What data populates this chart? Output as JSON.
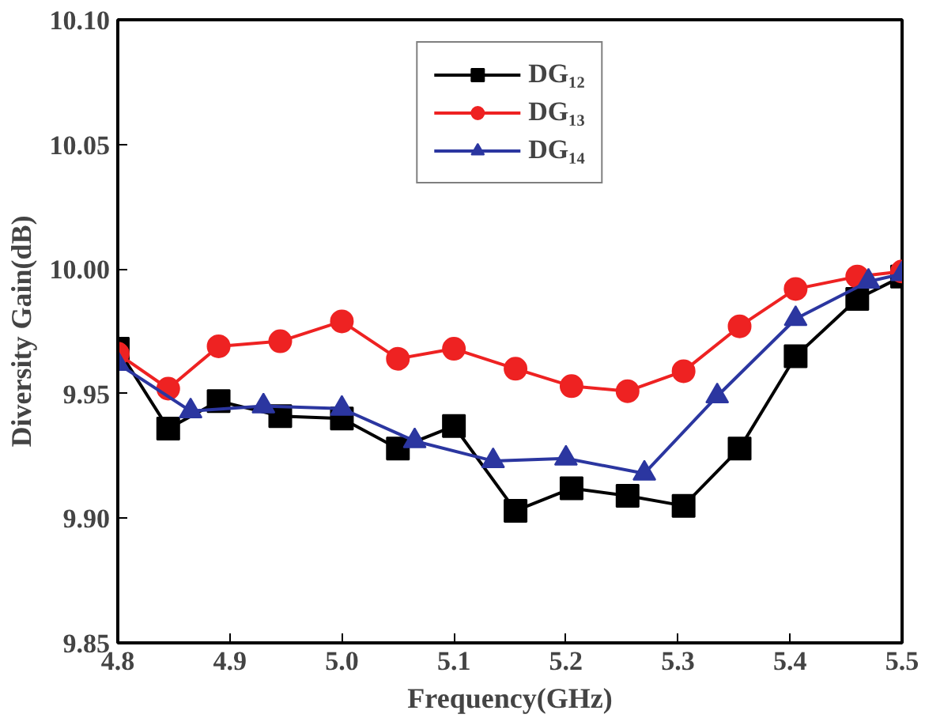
{
  "chart_data": {
    "type": "line",
    "xlabel": "Frequency(GHz)",
    "ylabel": "Diversity Gain(dB)",
    "xlim": [
      4.8,
      5.5
    ],
    "xticks": [
      {
        "value": 4.8,
        "label": "4.8"
      },
      {
        "value": 4.9,
        "label": "4.9"
      },
      {
        "value": 5.0,
        "label": "5.0"
      },
      {
        "value": 5.1,
        "label": "5.1"
      },
      {
        "value": 5.2,
        "label": "5.2"
      },
      {
        "value": 5.3,
        "label": "5.3"
      },
      {
        "value": 5.4,
        "label": "5.4"
      },
      {
        "value": 5.5,
        "label": "5.5"
      }
    ],
    "ylim": [
      9.85,
      10.1
    ],
    "yticks": [
      {
        "value": 9.85,
        "label": "9.85"
      },
      {
        "value": 9.9,
        "label": "9.90"
      },
      {
        "value": 9.95,
        "label": "9.95"
      },
      {
        "value": 10.0,
        "label": "10.00"
      },
      {
        "value": 10.05,
        "label": "10.05"
      },
      {
        "value": 10.1,
        "label": "10.10"
      }
    ],
    "grid": false,
    "legend": "top",
    "line_style": "solid",
    "series": [
      {
        "name": "DG₁₂",
        "color": "#000000",
        "marker": "square",
        "x": [
          4.8,
          4.845,
          4.89,
          4.945,
          5.0,
          5.05,
          5.1,
          5.155,
          5.205,
          5.255,
          5.305,
          5.355,
          5.405,
          5.46,
          5.5
        ],
        "values": [
          9.968,
          9.936,
          9.947,
          9.941,
          9.94,
          9.928,
          9.937,
          9.903,
          9.912,
          9.909,
          9.905,
          9.928,
          9.965,
          9.988,
          9.997
        ]
      },
      {
        "name": "DG₁₃",
        "color": "#ee2222",
        "marker": "circle",
        "x": [
          4.8,
          4.845,
          4.89,
          4.945,
          5.0,
          5.05,
          5.1,
          5.155,
          5.205,
          5.255,
          5.305,
          5.355,
          5.405,
          5.46,
          5.5
        ],
        "values": [
          9.966,
          9.952,
          9.969,
          9.971,
          9.979,
          9.964,
          9.968,
          9.96,
          9.953,
          9.951,
          9.959,
          9.977,
          9.992,
          9.997,
          9.999
        ]
      },
      {
        "name": "DG₁₄",
        "color": "#2b36a0",
        "marker": "triangle",
        "x": [
          4.8,
          4.865,
          4.93,
          5.0,
          5.065,
          5.135,
          5.2,
          5.27,
          5.335,
          5.405,
          5.47,
          5.5
        ],
        "values": [
          9.962,
          9.943,
          9.945,
          9.944,
          9.931,
          9.923,
          9.924,
          9.918,
          9.949,
          9.98,
          9.995,
          9.998
        ]
      }
    ]
  }
}
